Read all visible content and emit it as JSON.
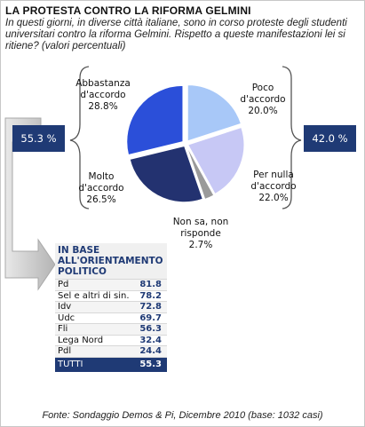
{
  "title": "LA PROTESTA CONTRO LA RIFORMA GELMINI",
  "subtitle": "In questi giorni, in diverse città italiane, sono in corso proteste degli studenti universitari contro la riforma Gelmini. Rispetto a queste manifestazioni lei si ritiene? (valori percentuali)",
  "left_total": "55.3 %",
  "right_total": "42.0 %",
  "colors": {
    "navy": "#1f3a75",
    "dark_blue": "#233270",
    "mid_blue": "#2b4fd9",
    "light_blue": "#a8c8f8",
    "lavender": "#c7c8f5",
    "gray": "#9a9a9a"
  },
  "chart_data": {
    "type": "pie",
    "slices": [
      {
        "label": "Abbastanza d'accordo",
        "label_lines": [
          "Abbastanza",
          "d'accordo"
        ],
        "value": 28.8,
        "display": "28.8%",
        "color": "#2b4fd9"
      },
      {
        "label": "Poco d'accordo",
        "label_lines": [
          "Poco",
          "d'accordo"
        ],
        "value": 20.0,
        "display": "20.0%",
        "color": "#a8c8f8"
      },
      {
        "label": "Per nulla d'accordo",
        "label_lines": [
          "Per nulla",
          "d'accordo"
        ],
        "value": 22.0,
        "display": "22.0%",
        "color": "#c7c8f5"
      },
      {
        "label": "Non sa, non risponde",
        "label_lines": [
          "Non sa, non",
          "risponde"
        ],
        "value": 2.7,
        "display": "2.7%",
        "color": "#9a9a9a"
      },
      {
        "label": "Molto d'accordo",
        "label_lines": [
          "Molto",
          "d'accordo"
        ],
        "value": 26.5,
        "display": "26.5%",
        "color": "#233270"
      }
    ]
  },
  "table": {
    "header": "IN BASE ALL'ORIENTAMENTO POLITICO",
    "rows": [
      {
        "party": "Pd",
        "value": "81.8"
      },
      {
        "party": "Sel e altri di sin.",
        "value": "78.2"
      },
      {
        "party": "Idv",
        "value": "72.8"
      },
      {
        "party": "Udc",
        "value": "69.7"
      },
      {
        "party": "Fli",
        "value": "56.3"
      },
      {
        "party": "Lega Nord",
        "value": "32.4"
      },
      {
        "party": "Pdl",
        "value": "24.4"
      }
    ],
    "total": {
      "party": "TUTTI",
      "value": "55.3"
    }
  },
  "source": "Fonte: Sondaggio Demos & Pi, Dicembre 2010 (base: 1032 casi)"
}
